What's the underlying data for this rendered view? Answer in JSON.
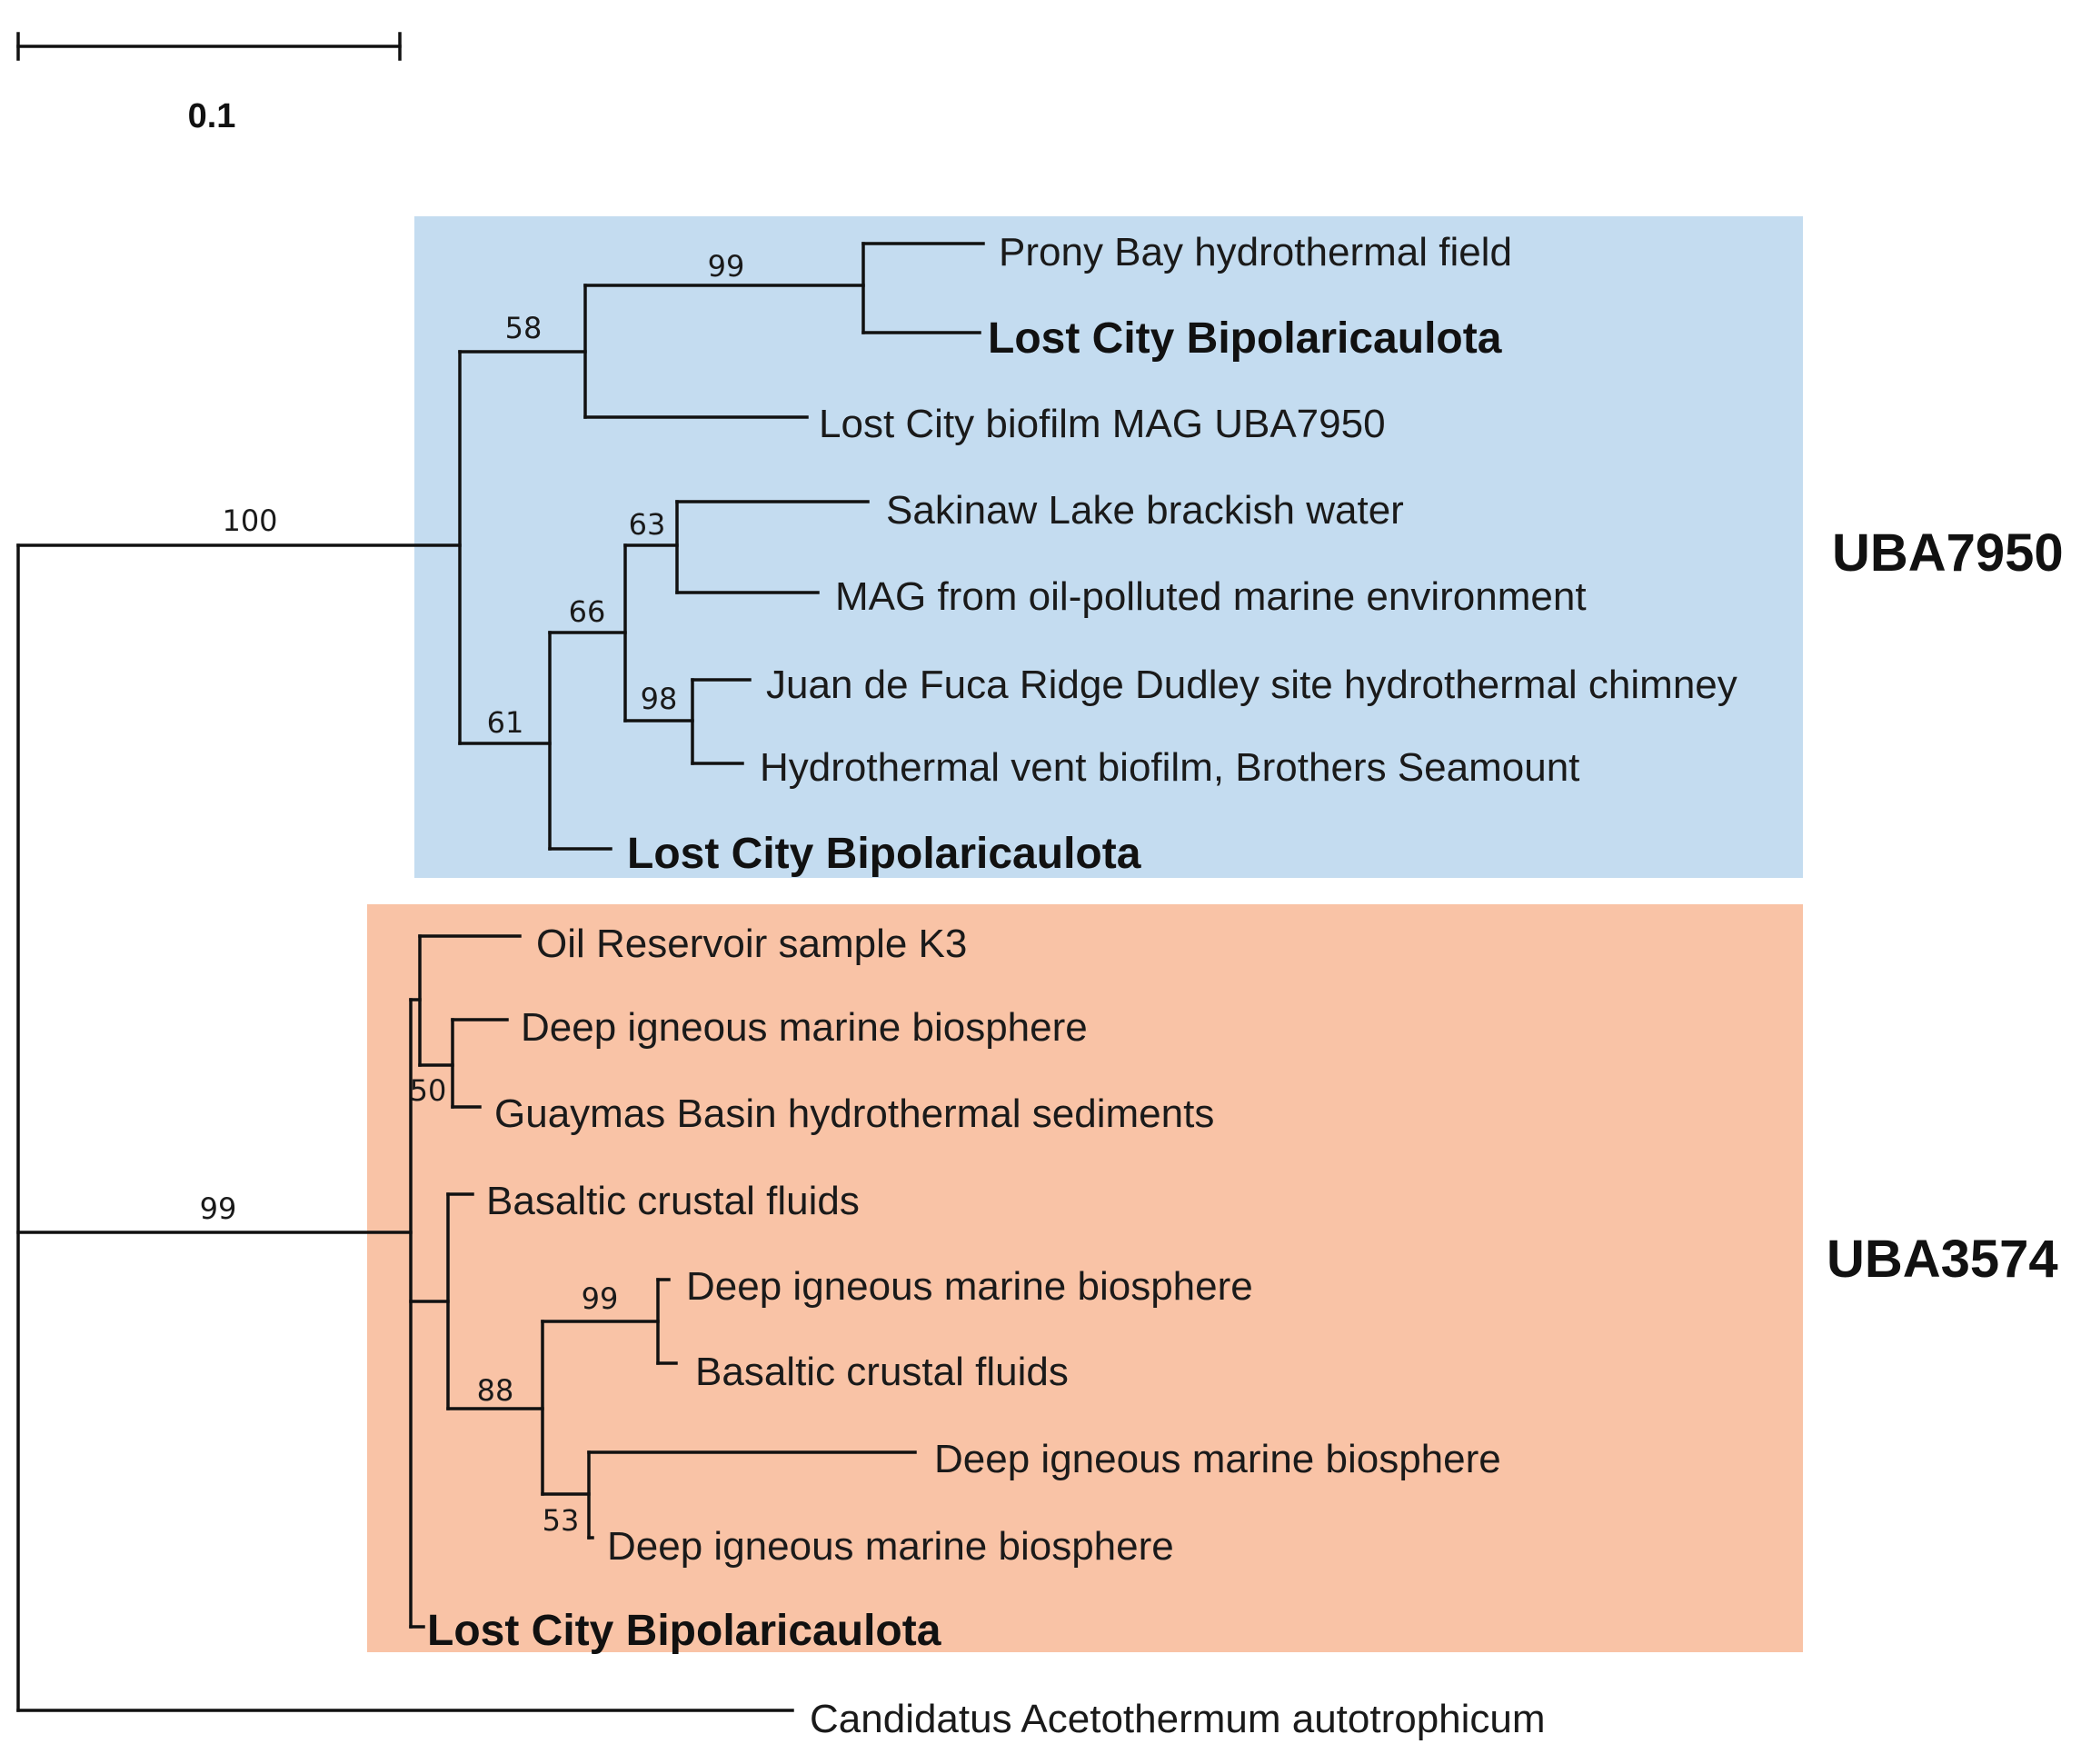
{
  "colors": {
    "uba7950_box": "#c4dcf0",
    "uba3574_box": "#f9c3a6",
    "line": "#111111",
    "text": "#1a1a1a"
  },
  "scale_bar": {
    "label": "0.1"
  },
  "clades": {
    "uba7950": {
      "label": "UBA7950"
    },
    "uba3574": {
      "label": "UBA3574"
    }
  },
  "leaves": [
    {
      "name": "Prony Bay hydrothermal field",
      "bold": false
    },
    {
      "name": "Lost City Bipolaricaulota",
      "bold": true
    },
    {
      "name": "Lost City biofilm MAG UBA7950",
      "bold": false
    },
    {
      "name": "Sakinaw Lake brackish water",
      "bold": false
    },
    {
      "name": "MAG from oil-polluted marine environment",
      "bold": false
    },
    {
      "name": "Juan de Fuca Ridge Dudley site hydrothermal chimney",
      "bold": false
    },
    {
      "name": "Hydrothermal vent biofilm, Brothers Seamount",
      "bold": false
    },
    {
      "name": "Lost City Bipolaricaulota",
      "bold": true
    },
    {
      "name": "Oil Reservoir sample K3",
      "bold": false
    },
    {
      "name": "Deep igneous marine biosphere",
      "bold": false
    },
    {
      "name": "Guaymas Basin hydrothermal sediments",
      "bold": false
    },
    {
      "name": "Basaltic crustal fluids",
      "bold": false
    },
    {
      "name": "Deep igneous marine biosphere",
      "bold": false
    },
    {
      "name": "Basaltic crustal fluids",
      "bold": false
    },
    {
      "name": "Deep igneous marine biosphere",
      "bold": false
    },
    {
      "name": "Deep igneous marine biosphere",
      "bold": false
    },
    {
      "name": "Lost City Bipolaricaulota",
      "bold": true
    },
    {
      "name": "Candidatus Acetothermum autotrophicum",
      "bold": false
    }
  ],
  "supports": [
    "100",
    "58",
    "99",
    "61",
    "66",
    "63",
    "98",
    "99",
    "50",
    "88",
    "99",
    "53"
  ]
}
